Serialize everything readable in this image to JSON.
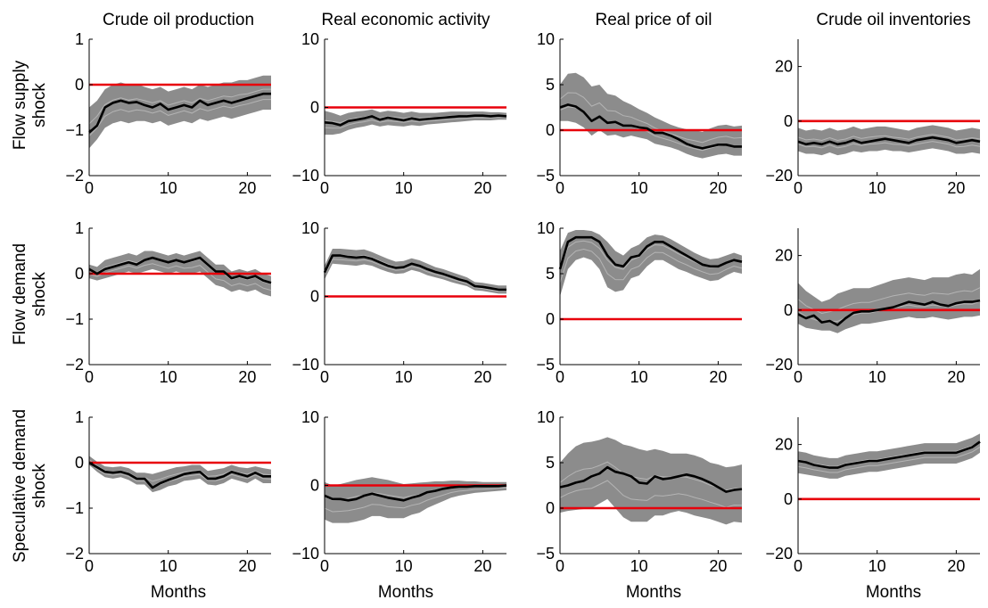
{
  "figure": {
    "column_titles": [
      "Crude oil production",
      "Real economic activity",
      "Real price of oil",
      "Crude oil inventories"
    ],
    "row_labels": [
      [
        "Flow supply",
        "shock"
      ],
      [
        "Flow demand",
        "shock"
      ],
      [
        "Speculative demand",
        "shock"
      ]
    ],
    "xlabel": "Months",
    "colors": {
      "band": "#8c8c8c",
      "median": "#000000",
      "zero_line": "#e8000b"
    }
  },
  "chart_data": [
    {
      "type": "line",
      "row": 0,
      "col": 0,
      "xlim": [
        0,
        23
      ],
      "ylim": [
        -2,
        1
      ],
      "yticks": [
        -2,
        -1,
        0,
        1
      ],
      "xticks": [
        0,
        10,
        20
      ],
      "zero_line": 0,
      "median": [
        -1.05,
        -0.9,
        -0.5,
        -0.4,
        -0.35,
        -0.4,
        -0.38,
        -0.45,
        -0.5,
        -0.42,
        -0.55,
        -0.5,
        -0.45,
        -0.5,
        -0.35,
        -0.45,
        -0.4,
        -0.35,
        -0.4,
        -0.35,
        -0.3,
        -0.25,
        -0.2,
        -0.2
      ],
      "band_lower": [
        -1.4,
        -1.2,
        -0.95,
        -0.85,
        -0.8,
        -0.85,
        -0.8,
        -0.8,
        -0.85,
        -0.8,
        -0.9,
        -0.85,
        -0.8,
        -0.85,
        -0.75,
        -0.8,
        -0.75,
        -0.7,
        -0.75,
        -0.7,
        -0.65,
        -0.6,
        -0.55,
        -0.55
      ],
      "band_upper": [
        -0.5,
        -0.35,
        -0.1,
        0.0,
        0.05,
        0.0,
        0.02,
        -0.05,
        -0.1,
        -0.05,
        -0.15,
        -0.1,
        -0.05,
        -0.1,
        0.0,
        -0.05,
        0.0,
        0.05,
        0.05,
        0.1,
        0.1,
        0.15,
        0.2,
        0.2
      ]
    },
    {
      "type": "line",
      "row": 0,
      "col": 1,
      "xlim": [
        0,
        23
      ],
      "ylim": [
        -10,
        10
      ],
      "yticks": [
        -10,
        0,
        10
      ],
      "xticks": [
        0,
        10,
        20
      ],
      "zero_line": 0,
      "median": [
        -2.2,
        -2.3,
        -2.6,
        -2.0,
        -1.8,
        -1.6,
        -1.3,
        -1.8,
        -1.5,
        -1.7,
        -1.9,
        -1.6,
        -1.8,
        -1.7,
        -1.6,
        -1.5,
        -1.4,
        -1.3,
        -1.3,
        -1.2,
        -1.2,
        -1.3,
        -1.2,
        -1.3
      ],
      "band_lower": [
        -4.0,
        -4.0,
        -3.8,
        -3.3,
        -3.0,
        -2.8,
        -2.5,
        -2.8,
        -2.6,
        -2.7,
        -2.8,
        -2.6,
        -2.7,
        -2.5,
        -2.4,
        -2.3,
        -2.2,
        -2.1,
        -2.0,
        -1.9,
        -1.9,
        -1.9,
        -1.8,
        -1.8
      ],
      "band_upper": [
        -0.5,
        -0.8,
        -1.2,
        -0.8,
        -0.6,
        -0.5,
        -0.3,
        -0.7,
        -0.5,
        -0.6,
        -0.8,
        -0.6,
        -0.8,
        -0.8,
        -0.8,
        -0.7,
        -0.6,
        -0.6,
        -0.6,
        -0.6,
        -0.6,
        -0.7,
        -0.7,
        -0.8
      ]
    },
    {
      "type": "line",
      "row": 0,
      "col": 2,
      "xlim": [
        0,
        23
      ],
      "ylim": [
        -5,
        10
      ],
      "yticks": [
        -5,
        0,
        5,
        10
      ],
      "xticks": [
        0,
        10,
        20
      ],
      "zero_line": 0,
      "median": [
        2.5,
        2.8,
        2.6,
        2.0,
        1.0,
        1.5,
        0.8,
        0.9,
        0.5,
        0.5,
        0.3,
        0.2,
        -0.3,
        -0.3,
        -0.6,
        -1.0,
        -1.5,
        -1.8,
        -2.0,
        -1.8,
        -1.6,
        -1.6,
        -1.8,
        -1.8
      ],
      "band_lower": [
        1.0,
        1.0,
        0.8,
        0.3,
        -0.6,
        0.0,
        -0.6,
        -0.5,
        -0.8,
        -0.6,
        -0.8,
        -1.0,
        -1.5,
        -1.7,
        -1.9,
        -2.2,
        -2.6,
        -2.9,
        -3.1,
        -2.9,
        -2.7,
        -2.6,
        -2.8,
        -2.8
      ],
      "band_upper": [
        5.0,
        6.2,
        6.3,
        5.8,
        4.8,
        5.0,
        4.0,
        3.8,
        3.2,
        2.8,
        2.3,
        1.9,
        1.4,
        1.0,
        0.6,
        0.3,
        0.1,
        0.0,
        -0.2,
        0.2,
        0.5,
        0.6,
        0.4,
        0.5
      ]
    },
    {
      "type": "line",
      "row": 0,
      "col": 3,
      "xlim": [
        0,
        23
      ],
      "ylim": [
        -20,
        30
      ],
      "yticks": [
        -20,
        0,
        20
      ],
      "xticks": [
        0,
        10,
        20
      ],
      "zero_line": 0,
      "median": [
        -7.5,
        -8.5,
        -8.0,
        -8.5,
        -7.5,
        -8.5,
        -8.0,
        -7.0,
        -8.0,
        -7.5,
        -7.0,
        -6.5,
        -7.0,
        -7.5,
        -8.0,
        -7.0,
        -6.5,
        -6.0,
        -6.5,
        -7.0,
        -8.0,
        -7.5,
        -7.0,
        -7.5
      ],
      "band_lower": [
        -11.0,
        -12.0,
        -12.0,
        -12.5,
        -11.5,
        -12.5,
        -12.0,
        -11.0,
        -11.5,
        -11.0,
        -11.0,
        -10.5,
        -11.0,
        -11.0,
        -11.5,
        -11.0,
        -10.5,
        -10.0,
        -10.5,
        -11.0,
        -12.0,
        -12.0,
        -11.5,
        -12.0
      ],
      "band_upper": [
        -2.5,
        -3.5,
        -3.0,
        -3.5,
        -2.5,
        -3.5,
        -3.0,
        -2.0,
        -3.0,
        -2.5,
        -2.0,
        -2.0,
        -2.5,
        -3.0,
        -3.5,
        -2.5,
        -2.0,
        -1.5,
        -2.0,
        -2.5,
        -3.5,
        -3.0,
        -2.5,
        -3.0
      ]
    },
    {
      "type": "line",
      "row": 1,
      "col": 0,
      "xlim": [
        0,
        23
      ],
      "ylim": [
        -2,
        1
      ],
      "yticks": [
        -2,
        -1,
        0,
        1
      ],
      "xticks": [
        0,
        10,
        20
      ],
      "zero_line": 0,
      "median": [
        0.1,
        0.0,
        0.1,
        0.15,
        0.2,
        0.25,
        0.2,
        0.3,
        0.35,
        0.3,
        0.25,
        0.3,
        0.25,
        0.3,
        0.35,
        0.2,
        0.05,
        0.05,
        -0.1,
        -0.05,
        -0.1,
        -0.05,
        -0.15,
        -0.2
      ],
      "band_lower": [
        -0.1,
        -0.15,
        -0.1,
        -0.05,
        0.0,
        0.05,
        0.0,
        0.05,
        0.1,
        0.05,
        0.0,
        0.05,
        0.0,
        0.0,
        0.05,
        -0.1,
        -0.25,
        -0.3,
        -0.4,
        -0.35,
        -0.4,
        -0.35,
        -0.45,
        -0.5
      ],
      "band_upper": [
        0.2,
        0.15,
        0.3,
        0.35,
        0.4,
        0.45,
        0.4,
        0.5,
        0.5,
        0.45,
        0.4,
        0.45,
        0.4,
        0.45,
        0.5,
        0.35,
        0.2,
        0.2,
        0.05,
        0.1,
        0.05,
        0.1,
        0.0,
        -0.05
      ]
    },
    {
      "type": "line",
      "row": 1,
      "col": 1,
      "xlim": [
        0,
        23
      ],
      "ylim": [
        -10,
        10
      ],
      "yticks": [
        -10,
        0,
        10
      ],
      "xticks": [
        0,
        10,
        20
      ],
      "zero_line": 0,
      "median": [
        3.5,
        6.0,
        6.0,
        5.8,
        5.7,
        5.8,
        5.5,
        5.0,
        4.5,
        4.2,
        4.3,
        4.8,
        4.5,
        4.0,
        3.6,
        3.3,
        2.9,
        2.5,
        2.2,
        1.5,
        1.4,
        1.2,
        1.0,
        1.0
      ],
      "band_lower": [
        2.5,
        4.8,
        4.7,
        4.6,
        4.5,
        4.7,
        4.5,
        4.0,
        3.6,
        3.3,
        3.4,
        3.9,
        3.6,
        3.1,
        2.8,
        2.5,
        2.1,
        1.8,
        1.5,
        0.9,
        0.8,
        0.6,
        0.4,
        0.4
      ],
      "band_upper": [
        4.5,
        7.0,
        7.0,
        6.9,
        6.8,
        6.9,
        6.5,
        6.0,
        5.5,
        5.1,
        5.2,
        5.6,
        5.3,
        4.8,
        4.3,
        4.0,
        3.6,
        3.2,
        2.8,
        2.1,
        2.0,
        1.8,
        1.6,
        1.6
      ]
    },
    {
      "type": "line",
      "row": 1,
      "col": 2,
      "xlim": [
        0,
        23
      ],
      "ylim": [
        -5,
        10
      ],
      "yticks": [
        -5,
        0,
        5,
        10
      ],
      "xticks": [
        0,
        10,
        20
      ],
      "zero_line": 0,
      "median": [
        5.5,
        8.5,
        9.0,
        9.0,
        9.0,
        8.5,
        7.0,
        6.0,
        5.8,
        6.8,
        7.0,
        8.0,
        8.5,
        8.5,
        8.0,
        7.5,
        7.0,
        6.5,
        6.0,
        5.8,
        5.8,
        6.2,
        6.5,
        6.3
      ],
      "band_lower": [
        2.5,
        5.5,
        6.5,
        6.8,
        6.5,
        5.5,
        3.5,
        3.0,
        3.2,
        4.5,
        4.8,
        5.8,
        6.5,
        6.5,
        6.0,
        5.5,
        5.2,
        4.8,
        4.5,
        4.2,
        4.3,
        4.8,
        5.2,
        5.0
      ],
      "band_upper": [
        7.5,
        9.5,
        9.8,
        9.8,
        9.7,
        9.3,
        8.5,
        7.5,
        7.0,
        7.8,
        8.2,
        9.0,
        9.3,
        9.2,
        8.8,
        8.3,
        7.8,
        7.3,
        6.9,
        6.6,
        6.7,
        7.0,
        7.3,
        7.0
      ]
    },
    {
      "type": "line",
      "row": 1,
      "col": 3,
      "xlim": [
        0,
        23
      ],
      "ylim": [
        -20,
        30
      ],
      "yticks": [
        -20,
        0,
        20
      ],
      "xticks": [
        0,
        10,
        20
      ],
      "zero_line": 0,
      "median": [
        -1.5,
        -3.0,
        -2.0,
        -4.5,
        -4.0,
        -5.5,
        -3.0,
        -1.0,
        -0.5,
        -0.5,
        0.0,
        0.5,
        1.0,
        2.0,
        3.0,
        2.5,
        2.0,
        3.0,
        2.0,
        1.5,
        2.5,
        3.0,
        3.0,
        3.5
      ],
      "band_lower": [
        -5.0,
        -6.5,
        -7.0,
        -7.5,
        -7.5,
        -8.5,
        -7.0,
        -6.0,
        -5.0,
        -5.0,
        -4.5,
        -4.0,
        -3.5,
        -3.0,
        -2.5,
        -3.0,
        -3.0,
        -2.5,
        -3.0,
        -3.5,
        -3.0,
        -2.5,
        -2.5,
        -2.0
      ],
      "band_upper": [
        10.0,
        7.0,
        5.0,
        3.0,
        4.0,
        6.0,
        7.0,
        8.0,
        8.0,
        8.0,
        9.0,
        10.0,
        11.0,
        11.5,
        12.0,
        11.5,
        11.0,
        12.0,
        12.0,
        12.0,
        13.0,
        13.5,
        13.0,
        15.0
      ]
    },
    {
      "type": "line",
      "row": 2,
      "col": 0,
      "xlim": [
        0,
        23
      ],
      "ylim": [
        -2,
        1
      ],
      "yticks": [
        -2,
        -1,
        0,
        1
      ],
      "xticks": [
        0,
        10,
        20
      ],
      "zero_line": 0,
      "median": [
        0.0,
        -0.1,
        -0.2,
        -0.22,
        -0.2,
        -0.25,
        -0.35,
        -0.35,
        -0.55,
        -0.45,
        -0.38,
        -0.32,
        -0.25,
        -0.22,
        -0.2,
        -0.35,
        -0.35,
        -0.3,
        -0.2,
        -0.25,
        -0.3,
        -0.22,
        -0.3,
        -0.3
      ],
      "band_lower": [
        -0.05,
        -0.2,
        -0.32,
        -0.35,
        -0.32,
        -0.38,
        -0.48,
        -0.48,
        -0.65,
        -0.6,
        -0.52,
        -0.48,
        -0.4,
        -0.38,
        -0.35,
        -0.48,
        -0.5,
        -0.45,
        -0.35,
        -0.4,
        -0.45,
        -0.35,
        -0.45,
        -0.45
      ],
      "band_upper": [
        0.15,
        0.02,
        -0.08,
        -0.1,
        -0.08,
        -0.12,
        -0.22,
        -0.22,
        -0.25,
        -0.2,
        -0.15,
        -0.1,
        -0.08,
        -0.05,
        -0.05,
        -0.18,
        -0.15,
        -0.12,
        -0.05,
        -0.1,
        -0.12,
        -0.08,
        -0.12,
        -0.15
      ]
    },
    {
      "type": "line",
      "row": 2,
      "col": 1,
      "xlim": [
        0,
        23
      ],
      "ylim": [
        -10,
        10
      ],
      "yticks": [
        -10,
        0,
        10
      ],
      "xticks": [
        0,
        10,
        20
      ],
      "zero_line": 0,
      "median": [
        -1.5,
        -2.0,
        -2.0,
        -2.2,
        -2.0,
        -1.5,
        -1.2,
        -1.5,
        -1.8,
        -2.0,
        -2.2,
        -1.8,
        -1.5,
        -1.0,
        -0.8,
        -0.5,
        -0.3,
        -0.2,
        -0.2,
        -0.1,
        -0.1,
        -0.1,
        -0.1,
        0.0
      ],
      "band_lower": [
        -5.0,
        -5.5,
        -5.5,
        -5.5,
        -5.3,
        -5.0,
        -4.5,
        -4.5,
        -4.8,
        -4.8,
        -4.8,
        -4.3,
        -4.0,
        -3.3,
        -2.8,
        -2.3,
        -1.8,
        -1.5,
        -1.3,
        -1.1,
        -1.0,
        -0.9,
        -0.8,
        -0.7
      ],
      "band_upper": [
        0.5,
        0.0,
        0.2,
        0.5,
        0.8,
        1.0,
        1.2,
        1.0,
        0.8,
        0.5,
        0.2,
        0.3,
        0.4,
        0.5,
        0.6,
        0.6,
        0.7,
        0.7,
        0.6,
        0.6,
        0.5,
        0.5,
        0.5,
        0.5
      ]
    },
    {
      "type": "line",
      "row": 2,
      "col": 2,
      "xlim": [
        0,
        23
      ],
      "ylim": [
        -5,
        10
      ],
      "yticks": [
        -5,
        0,
        5,
        10
      ],
      "xticks": [
        0,
        10,
        20
      ],
      "zero_line": 0,
      "median": [
        2.3,
        2.5,
        2.8,
        3.0,
        3.5,
        3.8,
        4.5,
        4.0,
        3.8,
        3.5,
        2.8,
        2.7,
        3.5,
        3.2,
        3.3,
        3.5,
        3.7,
        3.5,
        3.2,
        2.8,
        2.3,
        1.8,
        2.0,
        2.1
      ],
      "band_lower": [
        -0.5,
        -0.3,
        -0.2,
        -0.1,
        0.0,
        0.5,
        1.0,
        0.0,
        -1.0,
        -1.5,
        -1.5,
        -1.5,
        -0.8,
        -0.8,
        -0.5,
        -0.3,
        -0.5,
        -0.8,
        -1.0,
        -1.2,
        -1.5,
        -1.8,
        -1.5,
        -1.6
      ],
      "band_upper": [
        5.0,
        6.0,
        6.8,
        7.2,
        7.3,
        7.5,
        7.8,
        7.5,
        7.0,
        6.8,
        6.5,
        6.3,
        6.5,
        6.3,
        6.0,
        6.0,
        6.0,
        5.8,
        5.5,
        5.0,
        4.8,
        4.5,
        4.6,
        4.8
      ]
    },
    {
      "type": "line",
      "row": 2,
      "col": 3,
      "xlim": [
        0,
        23
      ],
      "ylim": [
        -20,
        30
      ],
      "yticks": [
        -20,
        0,
        20
      ],
      "xticks": [
        0,
        10,
        20
      ],
      "zero_line": 0,
      "median": [
        14.0,
        13.5,
        12.5,
        12.0,
        11.5,
        11.5,
        12.5,
        13.0,
        13.5,
        14.0,
        14.0,
        14.5,
        15.0,
        15.5,
        16.0,
        16.5,
        17.0,
        17.0,
        17.0,
        17.0,
        17.0,
        18.0,
        19.0,
        21.0
      ],
      "band_lower": [
        9.5,
        9.0,
        8.5,
        8.0,
        7.5,
        7.5,
        8.5,
        9.0,
        9.5,
        10.0,
        10.0,
        10.5,
        11.0,
        11.5,
        12.0,
        12.5,
        13.0,
        13.0,
        13.0,
        13.0,
        13.0,
        14.0,
        15.0,
        17.0
      ],
      "band_upper": [
        17.5,
        17.0,
        16.0,
        15.5,
        15.0,
        15.0,
        16.0,
        16.5,
        17.0,
        17.5,
        17.5,
        18.0,
        18.5,
        19.0,
        19.5,
        20.0,
        20.5,
        20.5,
        20.5,
        20.5,
        20.5,
        21.5,
        22.5,
        24.0
      ]
    }
  ]
}
